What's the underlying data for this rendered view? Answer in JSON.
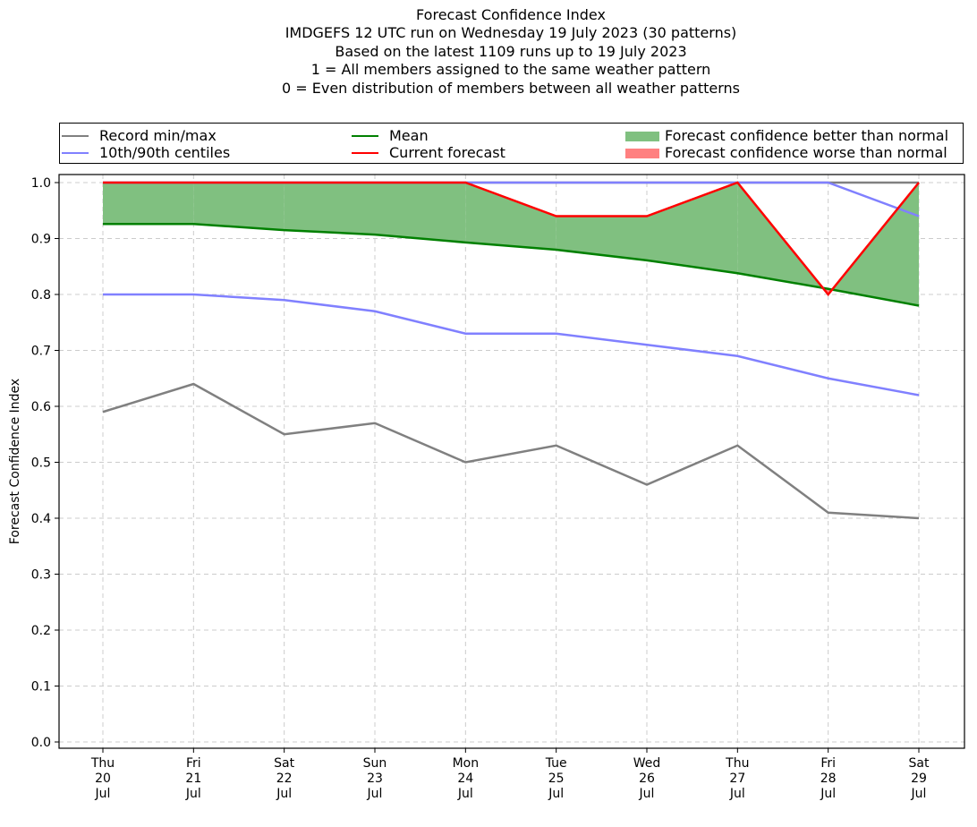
{
  "chart_data": {
    "type": "line",
    "title_lines": [
      "Forecast Confidence Index",
      "IMDGEFS 12 UTC run on Wednesday 19 July 2023 (30 patterns)",
      "Based on the latest 1109 runs up to 19 July 2023",
      "1 = All members assigned to the same weather pattern",
      "0 = Even distribution of members between all weather patterns"
    ],
    "xlabel": "",
    "ylabel": "Forecast Confidence Index",
    "ylim": [
      0.0,
      1.0
    ],
    "yticks": [
      "0.0",
      "0.1",
      "0.2",
      "0.3",
      "0.4",
      "0.5",
      "0.6",
      "0.7",
      "0.8",
      "0.9",
      "1.0"
    ],
    "grid": true,
    "legend_position": "top (above plot, full width)",
    "categories": [
      {
        "day": "Thu",
        "date": "20",
        "month": "Jul"
      },
      {
        "day": "Fri",
        "date": "21",
        "month": "Jul"
      },
      {
        "day": "Sat",
        "date": "22",
        "month": "Jul"
      },
      {
        "day": "Sun",
        "date": "23",
        "month": "Jul"
      },
      {
        "day": "Mon",
        "date": "24",
        "month": "Jul"
      },
      {
        "day": "Tue",
        "date": "25",
        "month": "Jul"
      },
      {
        "day": "Wed",
        "date": "26",
        "month": "Jul"
      },
      {
        "day": "Thu",
        "date": "27",
        "month": "Jul"
      },
      {
        "day": "Fri",
        "date": "28",
        "month": "Jul"
      },
      {
        "day": "Sat",
        "date": "29",
        "month": "Jul"
      }
    ],
    "series": [
      {
        "name": "Record max",
        "legend_group": "record",
        "color": "#808080",
        "values": [
          1.0,
          1.0,
          1.0,
          1.0,
          1.0,
          1.0,
          1.0,
          1.0,
          1.0,
          1.0
        ]
      },
      {
        "name": "Record min",
        "legend_group": "record",
        "color": "#808080",
        "values": [
          0.59,
          0.64,
          0.55,
          0.57,
          0.5,
          0.53,
          0.46,
          0.53,
          0.41,
          0.4
        ]
      },
      {
        "name": "90th centile",
        "legend_group": "centiles",
        "color": "#8080ff",
        "values": [
          1.0,
          1.0,
          1.0,
          1.0,
          1.0,
          1.0,
          1.0,
          1.0,
          1.0,
          0.94
        ]
      },
      {
        "name": "10th centile",
        "legend_group": "centiles",
        "color": "#8080ff",
        "values": [
          0.8,
          0.8,
          0.79,
          0.77,
          0.73,
          0.73,
          0.71,
          0.69,
          0.65,
          0.62
        ]
      },
      {
        "name": "Mean",
        "legend_group": "mean",
        "color": "#008000",
        "values": [
          0.926,
          0.926,
          0.915,
          0.907,
          0.893,
          0.88,
          0.861,
          0.838,
          0.81,
          0.78
        ]
      },
      {
        "name": "Current forecast",
        "legend_group": "current",
        "color": "#ff0000",
        "values": [
          1.0,
          1.0,
          1.0,
          1.0,
          1.0,
          0.94,
          0.94,
          1.0,
          0.8,
          1.0
        ]
      }
    ],
    "fills": [
      {
        "name": "Forecast confidence better than normal",
        "color": "#80c080",
        "between": [
          "Mean",
          "Current forecast"
        ],
        "where": "current > mean"
      },
      {
        "name": "Forecast confidence worse than normal",
        "color": "#ff8080",
        "between": [
          "Mean",
          "Current forecast"
        ],
        "where": "current < mean"
      }
    ],
    "legend": [
      {
        "label": "Record min/max",
        "kind": "line",
        "color": "#808080"
      },
      {
        "label": "10th/90th centiles",
        "kind": "line",
        "color": "#8080ff"
      },
      {
        "label": "Mean",
        "kind": "line",
        "color": "#008000"
      },
      {
        "label": "Current forecast",
        "kind": "line",
        "color": "#ff0000"
      },
      {
        "label": "Forecast confidence better than normal",
        "kind": "patch",
        "color": "#80c080"
      },
      {
        "label": "Forecast confidence worse than normal",
        "kind": "patch",
        "color": "#ff8080"
      }
    ]
  }
}
